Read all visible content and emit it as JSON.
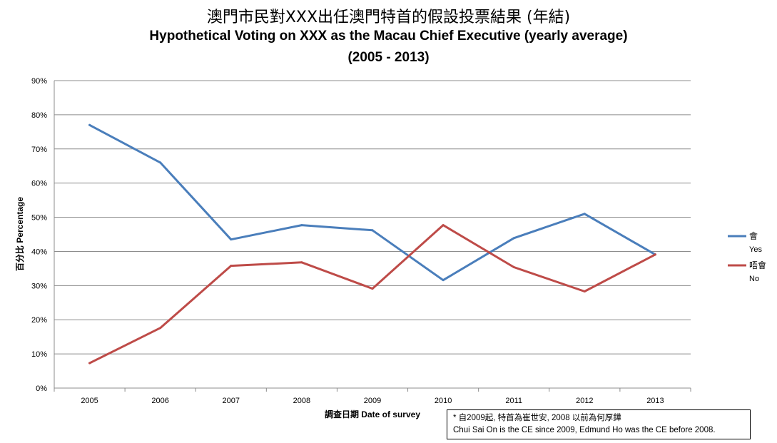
{
  "header": {
    "title_zh": "澳門市民對XXX出任澳門特首的假設投票結果 (年結)",
    "title_en": "Hypothetical Voting on XXX as the Macau Chief Executive (yearly average)",
    "subtitle": "(2005 - 2013)"
  },
  "note": {
    "line1": "* 自2009起, 特首為崔世安, 2008 以前為何厚鏵",
    "line2": "Chui Sai On is the CE since 2009, Edmund Ho was the CE before 2008."
  },
  "chart_data": {
    "type": "line",
    "title": "澳門市民對XXX出任澳門特首的假設投票結果 (年結) Hypothetical Voting on XXX as the Macau Chief Executive (yearly average) (2005 - 2013)",
    "xlabel": "調查日期 Date of survey",
    "ylabel": "百分比 Percentage",
    "categories": [
      "2005",
      "2006",
      "2007",
      "2008",
      "2009",
      "2010",
      "2011",
      "2012",
      "2013"
    ],
    "ylim": [
      0,
      90
    ],
    "yticks": [
      0,
      10,
      20,
      30,
      40,
      50,
      60,
      70,
      80,
      90
    ],
    "ytick_labels": [
      "0%",
      "10%",
      "20%",
      "30%",
      "40%",
      "50%",
      "60%",
      "70%",
      "80%",
      "90%"
    ],
    "grid": true,
    "legend_position": "right",
    "series": [
      {
        "name": "會",
        "name_en": "Yes",
        "color": "#4a7ebb",
        "values": [
          77,
          66,
          43.5,
          47.7,
          46.2,
          31.6,
          43.9,
          51,
          39.1
        ]
      },
      {
        "name": "唔會",
        "name_en": "No",
        "color": "#be4b48",
        "values": [
          7.3,
          17.6,
          35.8,
          36.8,
          29.1,
          47.7,
          35.4,
          28.3,
          39.1
        ]
      }
    ]
  }
}
